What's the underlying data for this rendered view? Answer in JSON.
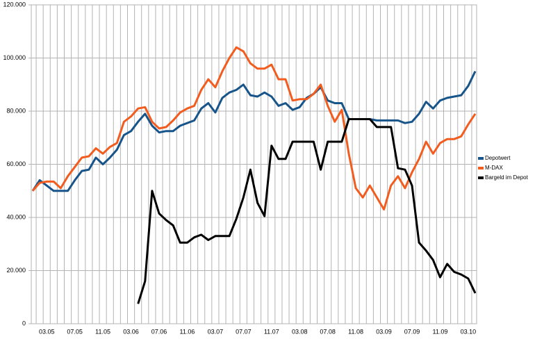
{
  "chart_data": {
    "type": "line",
    "categories": [
      null,
      null,
      "03.05",
      null,
      null,
      null,
      "07.05",
      null,
      null,
      null,
      "11.05",
      null,
      null,
      null,
      "03.06",
      null,
      null,
      null,
      "07.06",
      null,
      null,
      null,
      "11.06",
      null,
      null,
      null,
      "03.07",
      null,
      null,
      null,
      "07.07",
      null,
      null,
      null,
      "11.07",
      null,
      null,
      null,
      "03.08",
      null,
      null,
      null,
      "07.08",
      null,
      null,
      null,
      "11.08",
      null,
      null,
      null,
      "03.09",
      null,
      null,
      null,
      "07.09",
      null,
      null,
      null,
      "11.09",
      null,
      null,
      null,
      "03.10",
      null
    ],
    "series": [
      {
        "name": "Depotwert",
        "color": "#17548a",
        "values": [
          50000,
          54000,
          52000,
          50000,
          50000,
          50000,
          54000,
          57500,
          58000,
          62500,
          60000,
          62500,
          65500,
          71000,
          72500,
          76000,
          79000,
          74500,
          72000,
          72500,
          72500,
          74500,
          75500,
          76500,
          81000,
          83000,
          79500,
          85000,
          87000,
          88000,
          90000,
          86000,
          85500,
          87000,
          85500,
          82000,
          83000,
          80500,
          81500,
          85000,
          86500,
          89000,
          84000,
          83000,
          83000,
          77000,
          77000,
          77000,
          77000,
          76500,
          76500,
          76500,
          76500,
          75500,
          76000,
          79000,
          83500,
          81000,
          84000,
          85000,
          85500,
          86000,
          89500,
          95000
        ]
      },
      {
        "name": "M-DAX",
        "color": "#f25c1e",
        "values": [
          50000,
          53000,
          53500,
          53500,
          51000,
          55500,
          59000,
          62500,
          63000,
          66000,
          64000,
          66500,
          68000,
          76000,
          78000,
          81000,
          81500,
          76000,
          73500,
          74000,
          76500,
          79500,
          81000,
          82000,
          88000,
          92000,
          89000,
          95000,
          100000,
          104000,
          102500,
          98000,
          96000,
          96000,
          97500,
          92000,
          92000,
          84000,
          84500,
          84500,
          86500,
          90000,
          82000,
          76000,
          80500,
          64000,
          51000,
          47500,
          52000,
          47500,
          43000,
          52000,
          55500,
          51000,
          57000,
          62000,
          68500,
          64000,
          68000,
          69500,
          69500,
          70500,
          75000,
          79000
        ]
      },
      {
        "name": "Bargeld im Depot",
        "color": "#000000",
        "values": [
          null,
          null,
          null,
          null,
          null,
          null,
          null,
          null,
          null,
          null,
          null,
          null,
          null,
          null,
          null,
          7500,
          16000,
          50000,
          41500,
          39000,
          37000,
          30500,
          30500,
          32500,
          33500,
          31500,
          33000,
          33000,
          33000,
          39500,
          47500,
          58000,
          45500,
          40500,
          67000,
          62000,
          62000,
          68500,
          68500,
          68500,
          68500,
          58000,
          68500,
          68500,
          68500,
          77000,
          77000,
          77000,
          77000,
          74000,
          74000,
          74000,
          58500,
          58000,
          52000,
          30500,
          27500,
          24000,
          17500,
          22500,
          19500,
          18500,
          17000,
          11500
        ]
      }
    ],
    "ylim": [
      0,
      120000
    ],
    "yticks": [
      0,
      {
        "value": 20000,
        "label": "20.000"
      },
      {
        "value": 40000,
        "label": "40.000"
      },
      {
        "value": 60000,
        "label": "60.000"
      },
      {
        "value": 80000,
        "label": "80.000"
      },
      {
        "value": 100000,
        "label": "100.000"
      },
      {
        "value": 120000,
        "label": "120.000"
      }
    ],
    "grid": true,
    "legend": "right"
  }
}
